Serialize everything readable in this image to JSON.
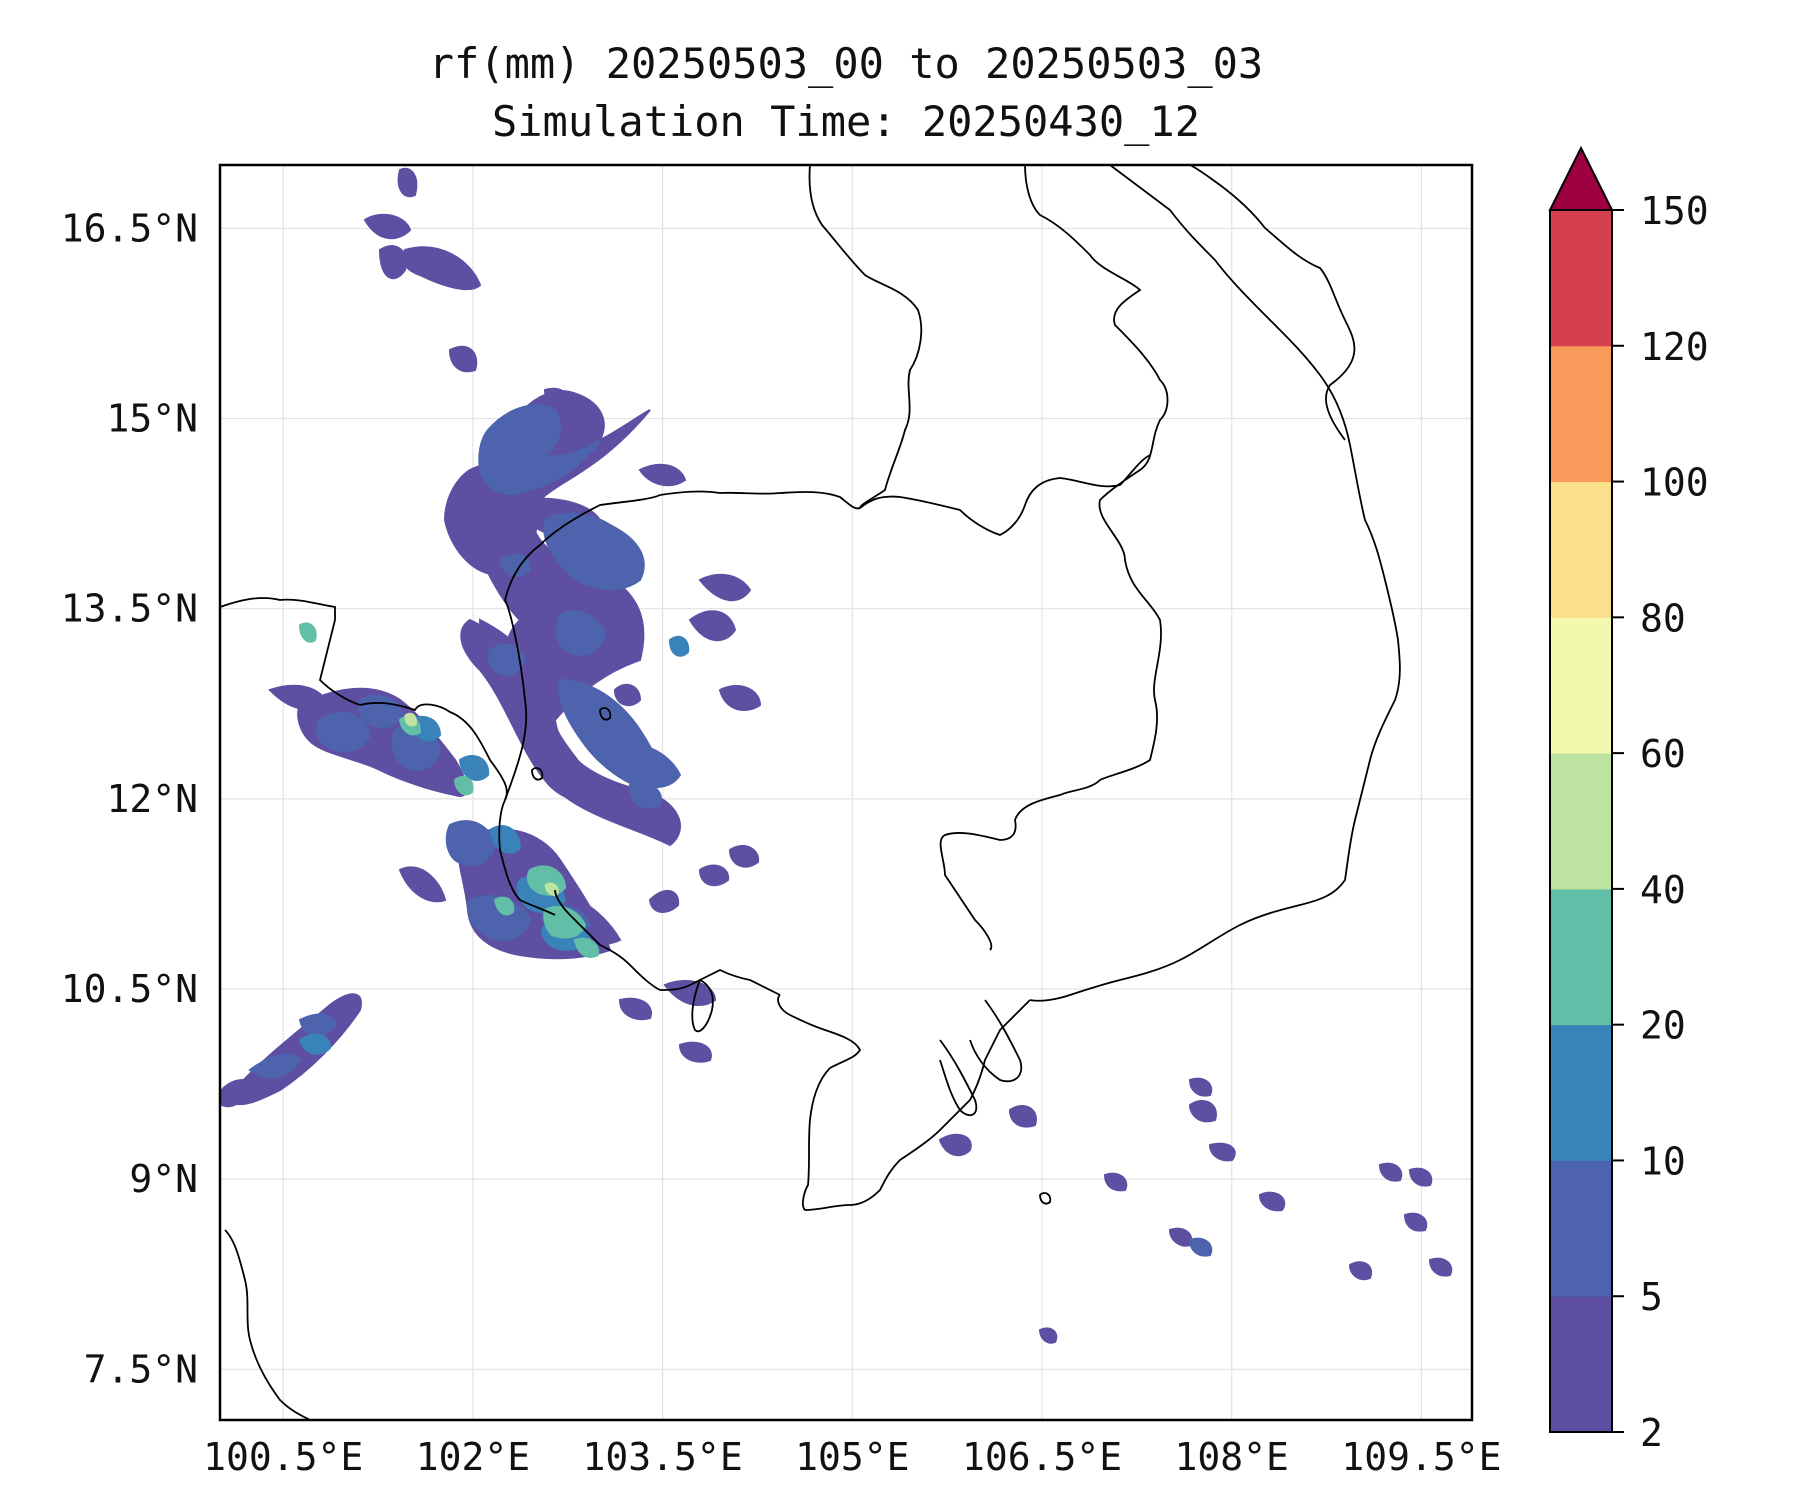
{
  "title": "rf(mm) 20250503_00 to 20250503_03",
  "subtitle": "Simulation Time: 20250430_12",
  "map": {
    "lon_range": [
      100.0,
      109.9
    ],
    "lat_range": [
      7.1,
      17.0
    ],
    "lon_ticks": [
      100.5,
      102,
      103.5,
      105,
      106.5,
      108,
      109.5
    ],
    "lon_tick_labels": [
      "100.5°E",
      "102°E",
      "103.5°E",
      "105°E",
      "106.5°E",
      "108°E",
      "109.5°E"
    ],
    "lat_ticks": [
      7.5,
      9,
      10.5,
      12,
      13.5,
      15,
      16.5
    ],
    "lat_tick_labels": [
      "7.5°N",
      "9°N",
      "10.5°N",
      "12°N",
      "13.5°N",
      "15°N",
      "16.5°N"
    ],
    "grid": true
  },
  "colorbar": {
    "tick_labels": [
      "2",
      "5",
      "10",
      "20",
      "40",
      "60",
      "80",
      "100",
      "120",
      "150"
    ],
    "colors": [
      "#5e4fa2",
      "#4d63ad",
      "#3a82ba",
      "#62bea6",
      "#bde3a0",
      "#f2f8ad",
      "#fbdf8a",
      "#f99a5b",
      "#d4404e"
    ],
    "extend_max_color": "#9e0142"
  }
}
